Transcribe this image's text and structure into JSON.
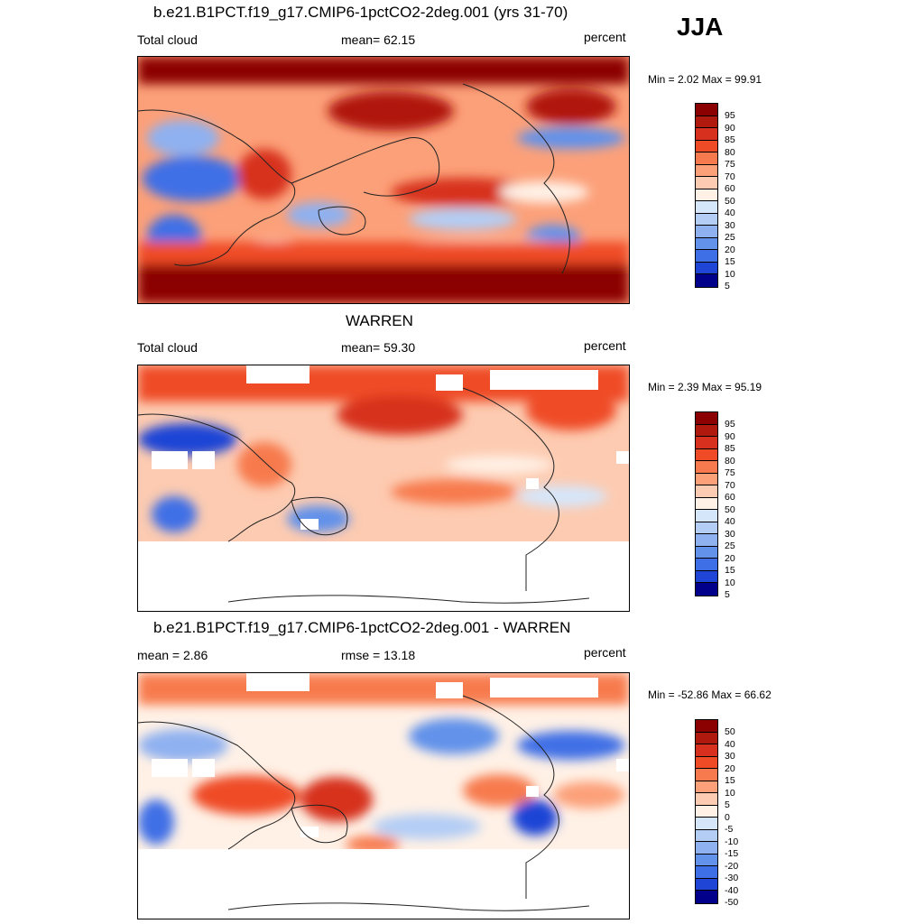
{
  "season": "JJA",
  "panels": [
    {
      "title": "b.e21.B1PCT.f19_g17.CMIP6-1pctCO2-2deg.001 (yrs 31-70)",
      "left_label": "Total cloud",
      "center_label": "mean=  62.15",
      "right_label": "percent",
      "minmax": "Min =   2.02 Max =  99.91",
      "colorbar_labels": [
        "95",
        "90",
        "85",
        "80",
        "75",
        "70",
        "60",
        "50",
        "40",
        "30",
        "25",
        "20",
        "15",
        "10",
        "5"
      ]
    },
    {
      "title": "WARREN",
      "left_label": "Total cloud",
      "center_label": "mean=  59.30",
      "right_label": "percent",
      "minmax": "Min =   2.39 Max =  95.19",
      "colorbar_labels": [
        "95",
        "90",
        "85",
        "80",
        "75",
        "70",
        "60",
        "50",
        "40",
        "30",
        "25",
        "20",
        "15",
        "10",
        "5"
      ]
    },
    {
      "title": "b.e21.B1PCT.f19_g17.CMIP6-1pctCO2-2deg.001 - WARREN",
      "left_label": "mean =   2.86",
      "center_label": "rmse =  13.18",
      "right_label": "percent",
      "minmax": "Min = -52.86 Max =  66.62",
      "colorbar_labels": [
        "50",
        "40",
        "30",
        "20",
        "15",
        "10",
        "5",
        "0",
        "-5",
        "-10",
        "-15",
        "-20",
        "-30",
        "-40",
        "-50"
      ]
    }
  ],
  "colors": {
    "scale": [
      "#8b0000",
      "#b0190d",
      "#d7301f",
      "#ef4b26",
      "#f77a4e",
      "#fca079",
      "#fdcbb1",
      "#fff1e6",
      "#d6e6fa",
      "#b3cdf5",
      "#8fb1f0",
      "#6292ea",
      "#3f6fe6",
      "#1f45d6",
      "#0c24b0",
      "#00008b"
    ]
  }
}
